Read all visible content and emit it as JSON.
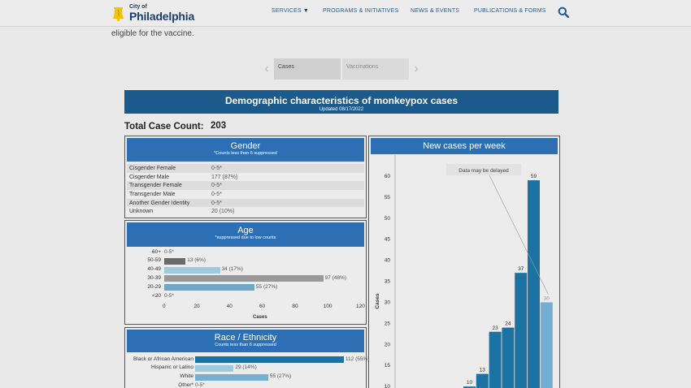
{
  "header": {
    "logo_small": "City of",
    "logo_big": "Philadelphia",
    "nav": [
      {
        "label": "SERVICES"
      },
      {
        "label": "PROGRAMS & INITIATIVES"
      },
      {
        "label": "NEWS & EVENTS"
      },
      {
        "label": "PUBLICATIONS & FORMS"
      }
    ],
    "icons": {
      "logo": "liberty-bell-icon",
      "search": "search-icon",
      "services_caret": "caret-down-icon"
    }
  },
  "intro_text": "eligible for the vaccine.",
  "toggle": {
    "tabs": [
      {
        "label": "Cases",
        "selected": true
      },
      {
        "label": "Vaccinations",
        "selected": false
      }
    ],
    "icons": {
      "prev": "chevron-left-icon",
      "next": "chevron-right-icon"
    },
    "prev_glyph": "‹",
    "next_glyph": "›"
  },
  "dashboard": {
    "title": "Demographic characteristics of monkeypox cases",
    "updated": "Updated 08/17/2022",
    "total_label": "Total Case Count:",
    "total_value": "203",
    "colors": {
      "title_bg": "#1c5a8c",
      "panel_head": "#2d6fb5",
      "bar_dark": "#1c73a3",
      "bar_gray": "#8f8f8f",
      "bar_light": "#74aed0"
    },
    "gender": {
      "title": "Gender",
      "note": "*Counts less than 6 suppressed",
      "rows": [
        {
          "label": "Cisgender Female",
          "value": "0-5*"
        },
        {
          "label": "Cisgender Male",
          "value": "177 (87%)"
        },
        {
          "label": "Transgender Female",
          "value": "0-5*"
        },
        {
          "label": "Transgender Male",
          "value": "0-5*"
        },
        {
          "label": "Another Gender Identity",
          "value": "0-5*"
        },
        {
          "label": "Unknown",
          "value": "20 (10%)"
        }
      ]
    },
    "age": {
      "title": "Age",
      "note": "*suppressed due to low counts",
      "xlabel": "Cases"
    },
    "race": {
      "title": "Race / Ethnicity",
      "note": "Counts less than 6 suppressed"
    },
    "weekly": {
      "title": "New cases per week",
      "annotation": "Data may be delayed",
      "ylabel": "Cases"
    }
  },
  "chart_data": [
    {
      "type": "bar",
      "orientation": "horizontal",
      "title": "Age",
      "subtitle": "*suppressed due to low counts",
      "categories": [
        "60+",
        "50-59",
        "40-49",
        "30-39",
        "20-29",
        "<20"
      ],
      "values": [
        null,
        13,
        34,
        97,
        55,
        null
      ],
      "labels": [
        "0-5*",
        "13 (6%)",
        "34 (17%)",
        "97 (48%)",
        "55 (27%)",
        "0-5*"
      ],
      "bar_colors": [
        "#74aed0",
        "#6a6a6a",
        "#9ec9de",
        "#999999",
        "#6fa7c8",
        "#74aed0"
      ],
      "xlabel": "Cases",
      "xlim": [
        0,
        120
      ],
      "xticks": [
        0,
        20,
        40,
        60,
        80,
        100,
        120
      ]
    },
    {
      "type": "bar",
      "orientation": "horizontal",
      "title": "Race / Ethnicity",
      "subtitle": "Counts less than 6 suppressed",
      "categories": [
        "Black or African American",
        "Hispanic or Latino",
        "White",
        "Other*"
      ],
      "values": [
        112,
        29,
        55,
        null
      ],
      "labels": [
        "112 (55%)",
        "29 (14%)",
        "55 (27%)",
        "0-5*"
      ],
      "bar_colors": [
        "#1c73a3",
        "#9ec9de",
        "#74aed0",
        "#74aed0"
      ],
      "xlim": [
        0,
        120
      ]
    },
    {
      "type": "bar",
      "title": "New cases per week",
      "ylabel": "Cases",
      "ylim": [
        0,
        65
      ],
      "yticks": [
        10,
        15,
        20,
        25,
        30,
        35,
        40,
        45,
        50,
        55,
        60
      ],
      "values": [
        10,
        13,
        23,
        24,
        37,
        59,
        30
      ],
      "bar_colors": [
        "#1c73a3",
        "#1c73a3",
        "#1c73a3",
        "#1c73a3",
        "#1c73a3",
        "#1c73a3",
        "#74aed0"
      ],
      "annotation": "Data may be delayed"
    }
  ]
}
